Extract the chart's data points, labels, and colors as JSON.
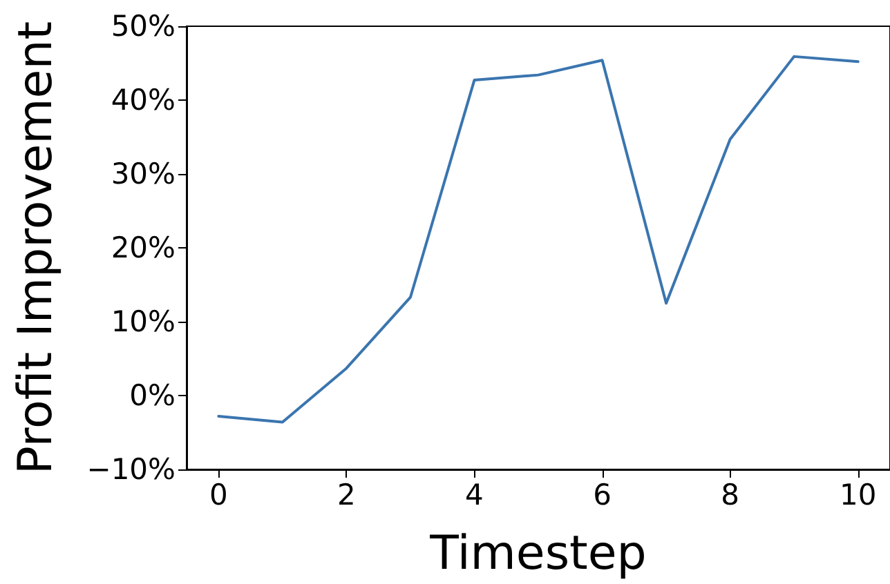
{
  "chart_data": {
    "type": "line",
    "xlabel": "Timestep",
    "ylabel": "Profit Improvement",
    "x": [
      0,
      1,
      2,
      3,
      4,
      5,
      6,
      7,
      8,
      9,
      10
    ],
    "series": [
      {
        "color": "#3a75af",
        "values": [
          -2.8,
          -3.6,
          3.7,
          13.3,
          42.7,
          43.4,
          45.4,
          12.5,
          34.7,
          45.9,
          45.2
        ]
      }
    ],
    "xlim": [
      -0.5,
      10.5
    ],
    "xticks": [
      0,
      2,
      4,
      6,
      8,
      10
    ],
    "ylim": [
      -10,
      50
    ],
    "yticks": [
      {
        "value": -10,
        "label": "−10%"
      },
      {
        "value": 0,
        "label": "0%"
      },
      {
        "value": 10,
        "label": "10%"
      },
      {
        "value": 20,
        "label": "20%"
      },
      {
        "value": 30,
        "label": "30%"
      },
      {
        "value": 40,
        "label": "40%"
      },
      {
        "value": 50,
        "label": "50%"
      }
    ],
    "marker": "none",
    "line_style": "solid"
  }
}
